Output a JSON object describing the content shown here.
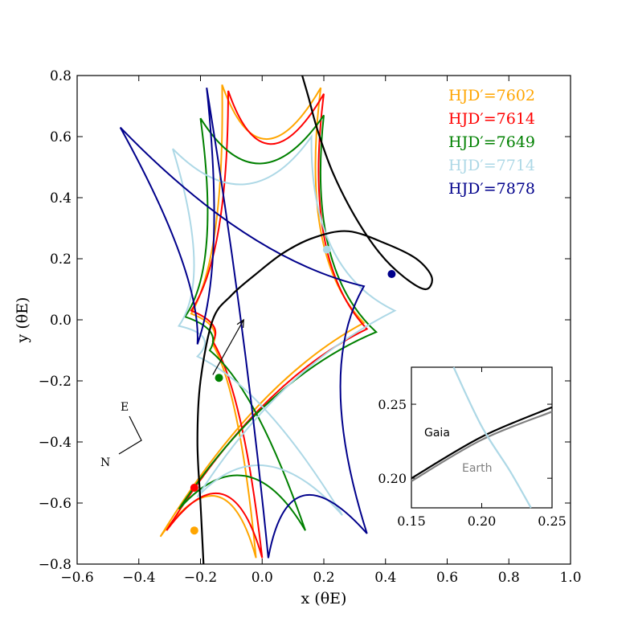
{
  "chart_data": {
    "type": "line",
    "xlabel": "x (θE)",
    "ylabel": "y (θE)",
    "xlim": [
      -0.6,
      1.0
    ],
    "ylim": [
      -0.8,
      0.8
    ],
    "xticks": [
      "−0.6",
      "−0.4",
      "−0.2",
      "0.0",
      "0.2",
      "0.4",
      "0.6",
      "0.8",
      "1.0"
    ],
    "yticks": [
      "−0.8",
      "−0.6",
      "−0.4",
      "−0.2",
      "0.0",
      "0.2",
      "0.4",
      "0.6",
      "0.8"
    ],
    "legend_position": "top-right",
    "series": [
      {
        "name": "HJD′=7602",
        "color": "#ffa500",
        "caustic_corners": [
          [
            -0.23,
            0.02
          ],
          [
            -0.16,
            -0.08
          ],
          [
            -0.02,
            -0.78
          ],
          [
            -0.33,
            -0.71
          ],
          [
            0.33,
            -0.01
          ],
          [
            0.19,
            0.76
          ],
          [
            -0.13,
            0.77
          ]
        ],
        "source_position": [
          -0.22,
          -0.69
        ]
      },
      {
        "name": "HJD′=7614",
        "color": "#ff0000",
        "caustic_corners": [
          [
            -0.23,
            0.03
          ],
          [
            -0.16,
            -0.07
          ],
          [
            0.0,
            -0.78
          ],
          [
            -0.31,
            -0.69
          ],
          [
            0.34,
            -0.03
          ],
          [
            0.2,
            0.74
          ],
          [
            -0.11,
            0.75
          ]
        ],
        "source_position": [
          -0.22,
          -0.55
        ]
      },
      {
        "name": "HJD′=7649",
        "color": "#008000",
        "caustic_corners": [
          [
            -0.25,
            0.01
          ],
          [
            -0.17,
            -0.1
          ],
          [
            0.14,
            -0.69
          ],
          [
            -0.27,
            -0.62
          ],
          [
            0.37,
            -0.04
          ],
          [
            0.2,
            0.67
          ],
          [
            -0.2,
            0.66
          ]
        ],
        "source_position": [
          -0.14,
          -0.19
        ]
      },
      {
        "name": "HJD′=7714",
        "color": "#add8e6",
        "caustic_corners": [
          [
            -0.27,
            -0.02
          ],
          [
            -0.21,
            -0.12
          ],
          [
            0.26,
            -0.64
          ],
          [
            -0.21,
            -0.58
          ],
          [
            0.43,
            0.03
          ],
          [
            0.16,
            0.6
          ],
          [
            -0.29,
            0.56
          ]
        ],
        "source_position": [
          0.21,
          0.23
        ]
      },
      {
        "name": "HJD′=7878",
        "color": "#00008b",
        "caustic_corners": [
          [
            -0.21,
            -0.08
          ],
          [
            -0.18,
            0.76
          ],
          [
            0.02,
            -0.78
          ],
          [
            0.34,
            -0.7
          ],
          [
            0.33,
            0.11
          ],
          [
            -0.46,
            0.63
          ]
        ],
        "source_position": [
          0.42,
          0.15
        ]
      }
    ],
    "source_trajectory": {
      "color": "#000000",
      "x": [
        -0.19,
        -0.2,
        -0.21,
        -0.2,
        -0.16,
        -0.1,
        -0.02,
        0.07,
        0.17,
        0.28,
        0.4,
        0.5,
        0.55,
        0.53,
        0.46,
        0.38,
        0.3,
        0.23,
        0.18,
        0.15,
        0.13
      ],
      "y": [
        -0.8,
        -0.6,
        -0.4,
        -0.2,
        0.0,
        0.08,
        0.15,
        0.22,
        0.27,
        0.29,
        0.25,
        0.2,
        0.14,
        0.1,
        0.14,
        0.22,
        0.34,
        0.48,
        0.62,
        0.73,
        0.8
      ]
    },
    "direction_arrow": {
      "from": [
        -0.16,
        -0.18
      ],
      "to": [
        -0.06,
        0.0
      ]
    },
    "compass": {
      "labels": [
        "E",
        "N"
      ]
    },
    "inset": {
      "xlim": [
        0.15,
        0.25
      ],
      "ylim": [
        0.18,
        0.275
      ],
      "xticks": [
        "0.15",
        "0.20",
        "0.25"
      ],
      "yticks": [
        "0.20",
        "0.25"
      ],
      "series": [
        {
          "name": "Gaia",
          "color": "#000000",
          "x": [
            0.15,
            0.2,
            0.25
          ],
          "y": [
            0.2,
            0.228,
            0.248
          ]
        },
        {
          "name": "Earth",
          "color": "#808080",
          "x": [
            0.15,
            0.2,
            0.25
          ],
          "y": [
            0.198,
            0.226,
            0.245
          ]
        },
        {
          "name": "",
          "color": "#add8e6",
          "x": [
            0.18,
            0.2,
            0.22,
            0.235
          ],
          "y": [
            0.275,
            0.235,
            0.205,
            0.18
          ]
        }
      ]
    }
  }
}
